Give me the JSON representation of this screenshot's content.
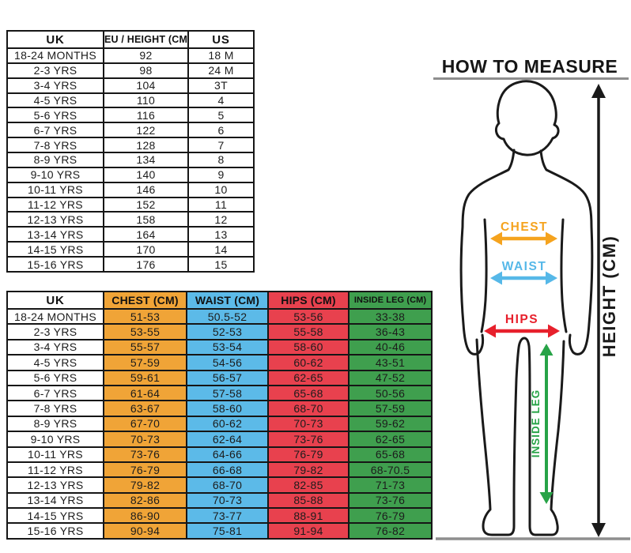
{
  "size_table": {
    "headers": [
      "UK",
      "EU / HEIGHT (CM)",
      "US"
    ],
    "rows": [
      [
        "18-24 MONTHS",
        "92",
        "18 M"
      ],
      [
        "2-3 YRS",
        "98",
        "24 M"
      ],
      [
        "3-4 YRS",
        "104",
        "3T"
      ],
      [
        "4-5 YRS",
        "110",
        "4"
      ],
      [
        "5-6 YRS",
        "116",
        "5"
      ],
      [
        "6-7 YRS",
        "122",
        "6"
      ],
      [
        "7-8 YRS",
        "128",
        "7"
      ],
      [
        "8-9 YRS",
        "134",
        "8"
      ],
      [
        "9-10 YRS",
        "140",
        "9"
      ],
      [
        "10-11 YRS",
        "146",
        "10"
      ],
      [
        "11-12 YRS",
        "152",
        "11"
      ],
      [
        "12-13 YRS",
        "158",
        "12"
      ],
      [
        "13-14 YRS",
        "164",
        "13"
      ],
      [
        "14-15 YRS",
        "170",
        "14"
      ],
      [
        "15-16 YRS",
        "176",
        "15"
      ]
    ]
  },
  "measure_table": {
    "columns": [
      {
        "label": "UK",
        "color": "#FFFFFF"
      },
      {
        "label": "CHEST (CM)",
        "color": "#F0A437"
      },
      {
        "label": "WAIST (CM)",
        "color": "#5CBAE8"
      },
      {
        "label": "HIPS (CM)",
        "color": "#E8414E"
      },
      {
        "label": "INSIDE LEG (CM)",
        "color": "#3F9F4E",
        "small": true
      }
    ],
    "rows": [
      [
        "18-24 MONTHS",
        "51-53",
        "50.5-52",
        "53-56",
        "33-38"
      ],
      [
        "2-3 YRS",
        "53-55",
        "52-53",
        "55-58",
        "36-43"
      ],
      [
        "3-4 YRS",
        "55-57",
        "53-54",
        "58-60",
        "40-46"
      ],
      [
        "4-5 YRS",
        "57-59",
        "54-56",
        "60-62",
        "43-51"
      ],
      [
        "5-6 YRS",
        "59-61",
        "56-57",
        "62-65",
        "47-52"
      ],
      [
        "6-7 YRS",
        "61-64",
        "57-58",
        "65-68",
        "50-56"
      ],
      [
        "7-8 YRS",
        "63-67",
        "58-60",
        "68-70",
        "57-59"
      ],
      [
        "8-9 YRS",
        "67-70",
        "60-62",
        "70-73",
        "59-62"
      ],
      [
        "9-10 YRS",
        "70-73",
        "62-64",
        "73-76",
        "62-65"
      ],
      [
        "10-11 YRS",
        "73-76",
        "64-66",
        "76-79",
        "65-68"
      ],
      [
        "11-12 YRS",
        "76-79",
        "66-68",
        "79-82",
        "68-70.5"
      ],
      [
        "12-13 YRS",
        "79-82",
        "68-70",
        "82-85",
        "71-73"
      ],
      [
        "13-14 YRS",
        "82-86",
        "70-73",
        "85-88",
        "73-76"
      ],
      [
        "14-15 YRS",
        "86-90",
        "73-77",
        "88-91",
        "76-79"
      ],
      [
        "15-16 YRS",
        "90-94",
        "75-81",
        "91-94",
        "76-82"
      ]
    ]
  },
  "how_to_measure": {
    "title": "HOW TO MEASURE",
    "labels": {
      "chest": "CHEST",
      "waist": "WAIST",
      "hips": "HIPS",
      "inside_leg": "INSIDE LEG",
      "height": "HEIGHT (CM)"
    },
    "colors": {
      "chest": "#F5A31E",
      "waist": "#56B8E8",
      "hips": "#E7202C",
      "inside_leg": "#27A347",
      "height": "#1A1A1A"
    }
  }
}
